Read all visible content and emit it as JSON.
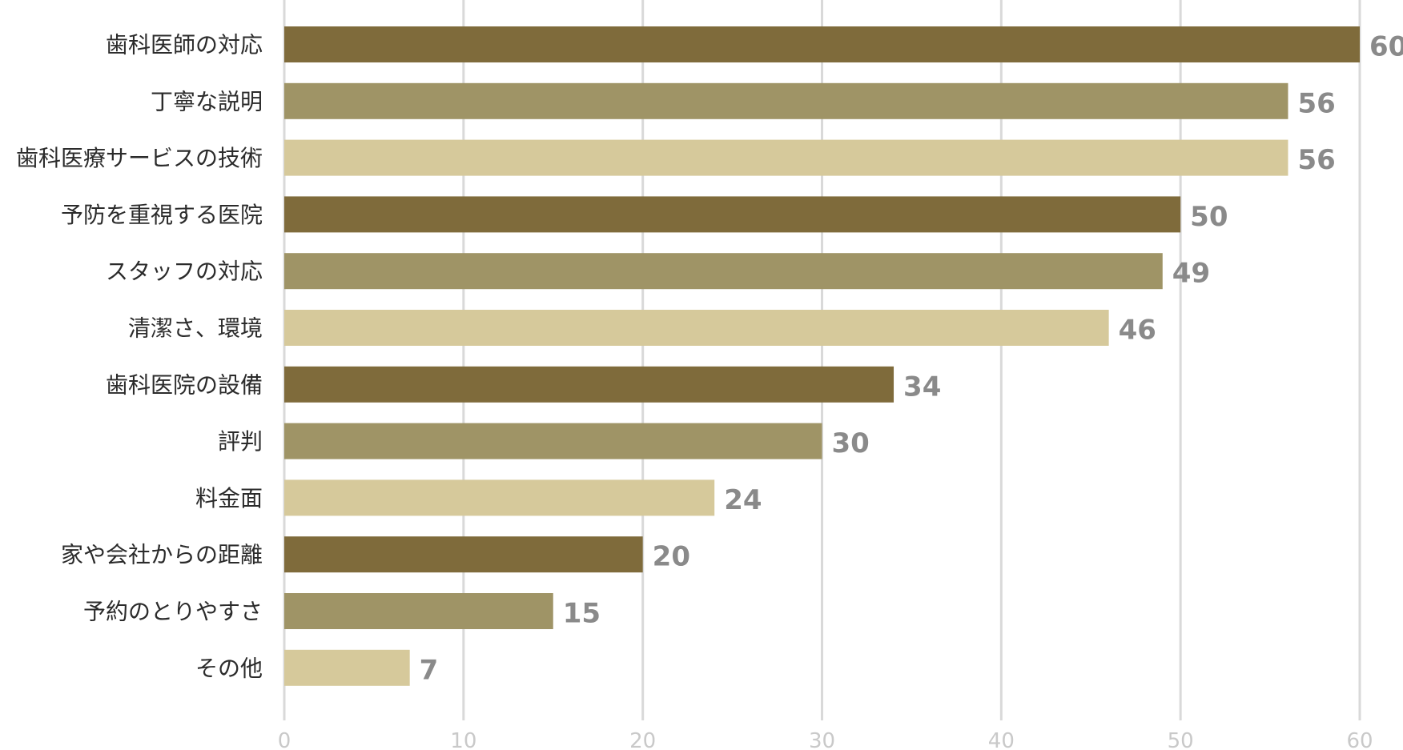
{
  "chart_data": {
    "type": "bar",
    "orientation": "horizontal",
    "title": "",
    "xlabel": "",
    "ylabel": "",
    "xlim": [
      0,
      60
    ],
    "x_ticks": [
      0,
      10,
      20,
      30,
      40,
      50,
      60
    ],
    "grid": true,
    "legend": "none",
    "categories": [
      "歯科医師の対応",
      "丁寧な説明",
      "歯科医療サービスの技術",
      "予防を重視する医院",
      "スタッフの対応",
      "清潔さ、環境",
      "歯科医院の設備",
      "評判",
      "料金面",
      "家や会社からの距離",
      "予約のとりやすさ",
      "その他"
    ],
    "values": [
      60,
      56,
      56,
      50,
      49,
      46,
      34,
      30,
      24,
      20,
      15,
      7
    ],
    "bar_colors": [
      "#7f6b3b",
      "#9f9466",
      "#d6c99b"
    ]
  }
}
